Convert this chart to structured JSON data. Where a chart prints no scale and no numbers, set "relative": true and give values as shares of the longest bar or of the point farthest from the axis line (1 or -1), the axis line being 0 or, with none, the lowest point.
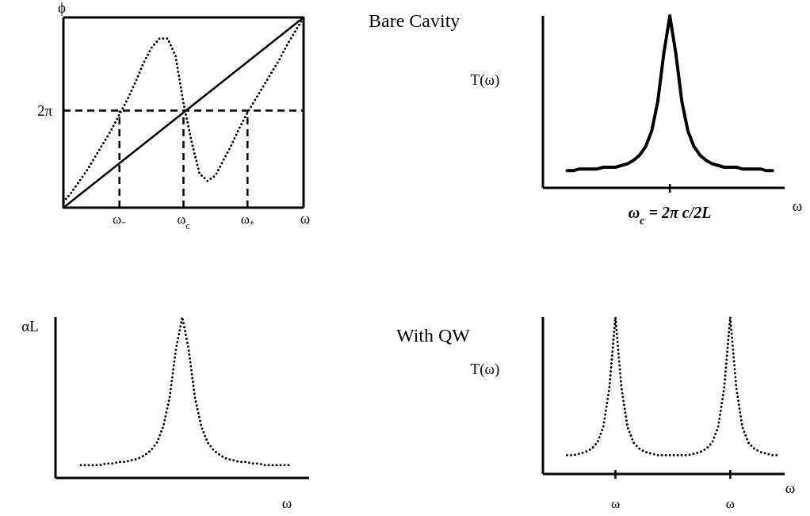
{
  "chart_data": [
    {
      "type": "line",
      "ylabel": "ϕ",
      "xlabel": "ω",
      "relative": true,
      "categories": [
        null,
        null,
        null,
        null,
        null,
        null,
        null,
        "ω₋",
        null,
        null,
        null,
        null,
        null,
        null,
        null,
        "ω$_{c}$",
        null,
        null,
        null,
        null,
        null,
        null,
        null,
        "ω₊",
        null,
        null,
        null,
        null,
        null,
        null,
        null
      ],
      "series": [
        {
          "color": "#000000",
          "line_style": "solid",
          "values": [
            0,
            0.033,
            0.067,
            0.1,
            0.133,
            0.167,
            0.2,
            0.233,
            0.267,
            0.3,
            0.333,
            0.367,
            0.4,
            0.433,
            0.467,
            0.5,
            0.533,
            0.567,
            0.6,
            0.633,
            0.667,
            0.7,
            0.733,
            0.767,
            0.8,
            0.833,
            0.867,
            0.9,
            0.933,
            0.967,
            1
          ]
        },
        {
          "color": "#000000",
          "line_style": "dotted",
          "values": [
            0.03,
            0.08,
            0.14,
            0.2,
            0.27,
            0.34,
            0.41,
            0.49,
            0.57,
            0.66,
            0.76,
            0.84,
            0.89,
            0.89,
            0.8,
            0.55,
            0.35,
            0.18,
            0.14,
            0.17,
            0.25,
            0.33,
            0.42,
            0.5,
            0.57,
            0.64,
            0.71,
            0.78,
            0.86,
            0.93,
            1
          ]
        }
      ],
      "ref_lines": [
        {
          "axis": "y",
          "value": 0.51,
          "label": "2π",
          "line_style": "dashed"
        },
        {
          "axis": "x",
          "value": "ω₋",
          "line_style": "dashed"
        },
        {
          "axis": "x",
          "value": "ω$_{c}$",
          "line_style": "dashed"
        },
        {
          "axis": "x",
          "value": "ω₊",
          "line_style": "dashed"
        }
      ]
    },
    {
      "type": "line",
      "title": "Bare Cavity",
      "ylabel": "T(ω)",
      "xlabel": "ω",
      "relative": true,
      "annotations": [
        "ω$_{c}$ = 2π c/2L"
      ],
      "categories": [
        null,
        null,
        null,
        null,
        null,
        null,
        null,
        null,
        null,
        null,
        null,
        null,
        null,
        null,
        null,
        null,
        null,
        null,
        null,
        null,
        null,
        null,
        null,
        null,
        null,
        null,
        null,
        null,
        null,
        null,
        null,
        null,
        null,
        null,
        null,
        null,
        null,
        null,
        null,
        null,
        null
      ],
      "series": [
        {
          "color": "#000000",
          "line_style": "solid",
          "values": [
            null,
            null,
            null,
            null,
            0.1,
            0.1,
            0.11,
            0.11,
            0.11,
            0.11,
            0.12,
            0.12,
            0.12,
            0.13,
            0.14,
            0.16,
            0.19,
            0.24,
            0.33,
            0.5,
            0.78,
            1,
            0.78,
            0.5,
            0.33,
            0.24,
            0.19,
            0.16,
            0.14,
            0.13,
            0.12,
            0.12,
            0.12,
            0.11,
            0.11,
            0.11,
            0.11,
            0.1,
            0.1,
            null,
            null
          ]
        }
      ]
    },
    {
      "type": "line",
      "ylabel": "αL",
      "xlabel": "ω",
      "relative": true,
      "categories": [
        null,
        null,
        null,
        null,
        null,
        null,
        null,
        null,
        null,
        null,
        null,
        null,
        null,
        null,
        null,
        null,
        null,
        null,
        null,
        null,
        null,
        null,
        null,
        null,
        null,
        null,
        null,
        null,
        null,
        null,
        null,
        null,
        null,
        null,
        null,
        null,
        null,
        null,
        null,
        null,
        null
      ],
      "series": [
        {
          "color": "#000000",
          "line_style": "dotted",
          "values": [
            null,
            null,
            null,
            null,
            0.08,
            0.08,
            0.08,
            0.08,
            0.09,
            0.09,
            0.1,
            0.1,
            0.11,
            0.12,
            0.14,
            0.17,
            0.22,
            0.32,
            0.5,
            0.8,
            1,
            0.8,
            0.5,
            0.32,
            0.22,
            0.17,
            0.14,
            0.12,
            0.11,
            0.1,
            0.1,
            0.09,
            0.09,
            0.08,
            0.08,
            0.08,
            0.08,
            0.08,
            null,
            null,
            null
          ]
        }
      ]
    },
    {
      "type": "line",
      "title": "With QW",
      "ylabel": "T(ω)",
      "xlabel": "ω",
      "relative": true,
      "categories": [
        null,
        null,
        null,
        null,
        null,
        null,
        null,
        null,
        null,
        null,
        null,
        null,
        "ω",
        null,
        null,
        null,
        null,
        null,
        null,
        null,
        null,
        null,
        null,
        null,
        null,
        null,
        null,
        null,
        null,
        null,
        null,
        "ω",
        null,
        null,
        null,
        null,
        null,
        null,
        null,
        null,
        null
      ],
      "series": [
        {
          "color": "#000000",
          "line_style": "dotted",
          "values": [
            null,
            null,
            null,
            null,
            0.12,
            0.12,
            0.13,
            0.14,
            0.16,
            0.2,
            0.3,
            0.55,
            1,
            0.55,
            0.3,
            0.2,
            0.16,
            0.14,
            0.13,
            0.12,
            0.12,
            0.12,
            0.12,
            0.12,
            0.12,
            0.13,
            0.14,
            0.16,
            0.2,
            0.3,
            0.55,
            1,
            0.55,
            0.3,
            0.2,
            0.16,
            0.14,
            0.13,
            0.12,
            0.12,
            null
          ]
        }
      ]
    }
  ]
}
